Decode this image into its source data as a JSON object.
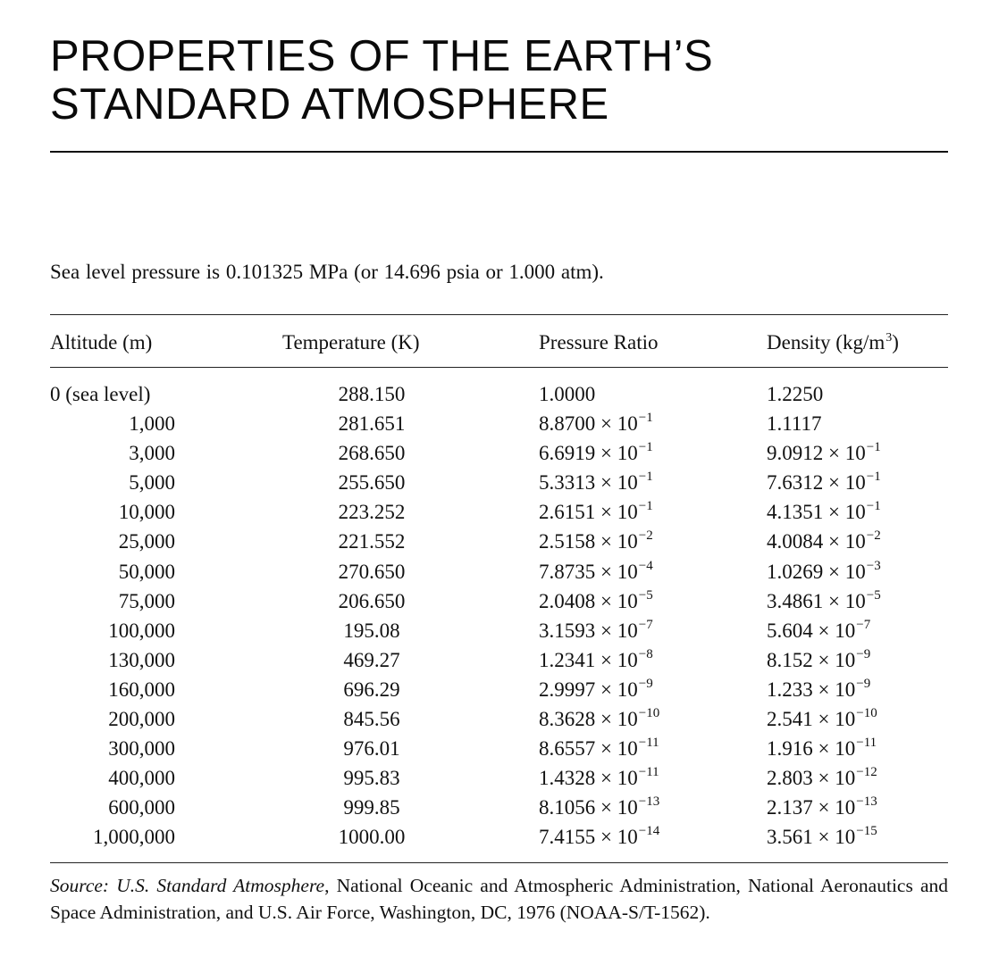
{
  "title": {
    "line1": "PROPERTIES OF THE EARTH’S",
    "line2": "STANDARD ATMOSPHERE"
  },
  "intro": "Sea level pressure is 0.101325 MPa (or 14.696 psia or 1.000 atm).",
  "table": {
    "headers": {
      "altitude": "Altitude (m)",
      "temperature": "Temperature (K)",
      "pressure": "Pressure Ratio",
      "density_pre": "Density (kg/m",
      "density_exp": "3",
      "density_post": ")"
    },
    "rows": [
      {
        "altitude": "0 (sea level)",
        "temperature": "288.150",
        "pressure": {
          "mant": "1.0000",
          "exp": ""
        },
        "density": {
          "mant": "1.2250",
          "exp": ""
        }
      },
      {
        "altitude": "1,000",
        "temperature": "281.651",
        "pressure": {
          "mant": "8.8700 × 10",
          "exp": "−1"
        },
        "density": {
          "mant": "1.1117",
          "exp": ""
        }
      },
      {
        "altitude": "3,000",
        "temperature": "268.650",
        "pressure": {
          "mant": "6.6919 × 10",
          "exp": "−1"
        },
        "density": {
          "mant": "9.0912 × 10",
          "exp": "−1"
        }
      },
      {
        "altitude": "5,000",
        "temperature": "255.650",
        "pressure": {
          "mant": "5.3313 × 10",
          "exp": "−1"
        },
        "density": {
          "mant": "7.6312 × 10",
          "exp": "−1"
        }
      },
      {
        "altitude": "10,000",
        "temperature": "223.252",
        "pressure": {
          "mant": "2.6151 × 10",
          "exp": "−1"
        },
        "density": {
          "mant": "4.1351 × 10",
          "exp": "−1"
        }
      },
      {
        "altitude": "25,000",
        "temperature": "221.552",
        "pressure": {
          "mant": "2.5158 × 10",
          "exp": "−2"
        },
        "density": {
          "mant": "4.0084 × 10",
          "exp": "−2"
        }
      },
      {
        "altitude": "50,000",
        "temperature": "270.650",
        "pressure": {
          "mant": "7.8735 × 10",
          "exp": "−4"
        },
        "density": {
          "mant": "1.0269 × 10",
          "exp": "−3"
        }
      },
      {
        "altitude": "75,000",
        "temperature": "206.650",
        "pressure": {
          "mant": "2.0408 × 10",
          "exp": "−5"
        },
        "density": {
          "mant": "3.4861 × 10",
          "exp": "−5"
        }
      },
      {
        "altitude": "100,000",
        "temperature": "195.08",
        "pressure": {
          "mant": "3.1593 × 10",
          "exp": "−7"
        },
        "density": {
          "mant": "5.604 × 10",
          "exp": "−7"
        }
      },
      {
        "altitude": "130,000",
        "temperature": "469.27",
        "pressure": {
          "mant": "1.2341 × 10",
          "exp": "−8"
        },
        "density": {
          "mant": "8.152 × 10",
          "exp": "−9"
        }
      },
      {
        "altitude": "160,000",
        "temperature": "696.29",
        "pressure": {
          "mant": "2.9997 × 10",
          "exp": "−9"
        },
        "density": {
          "mant": "1.233 × 10",
          "exp": "−9"
        }
      },
      {
        "altitude": "200,000",
        "temperature": "845.56",
        "pressure": {
          "mant": "8.3628 × 10",
          "exp": "−10"
        },
        "density": {
          "mant": "2.541 × 10",
          "exp": "−10"
        }
      },
      {
        "altitude": "300,000",
        "temperature": "976.01",
        "pressure": {
          "mant": "8.6557 × 10",
          "exp": "−11"
        },
        "density": {
          "mant": "1.916 × 10",
          "exp": "−11"
        }
      },
      {
        "altitude": "400,000",
        "temperature": "995.83",
        "pressure": {
          "mant": "1.4328 × 10",
          "exp": "−11"
        },
        "density": {
          "mant": "2.803 × 10",
          "exp": "−12"
        }
      },
      {
        "altitude": "600,000",
        "temperature": "999.85",
        "pressure": {
          "mant": "8.1056 × 10",
          "exp": "−13"
        },
        "density": {
          "mant": "2.137 × 10",
          "exp": "−13"
        }
      },
      {
        "altitude": "1,000,000",
        "temperature": "1000.00",
        "pressure": {
          "mant": "7.4155 × 10",
          "exp": "−14"
        },
        "density": {
          "mant": "3.561 × 10",
          "exp": "−15"
        }
      }
    ]
  },
  "source": {
    "label": "Source:",
    "work": "U.S. Standard Atmosphere",
    "rest": ", National Oceanic and Atmospheric Administration, National Aeronautics and Space Administration, and U.S. Air Force, Washington, DC, 1976 (NOAA-S/T-1562)."
  }
}
